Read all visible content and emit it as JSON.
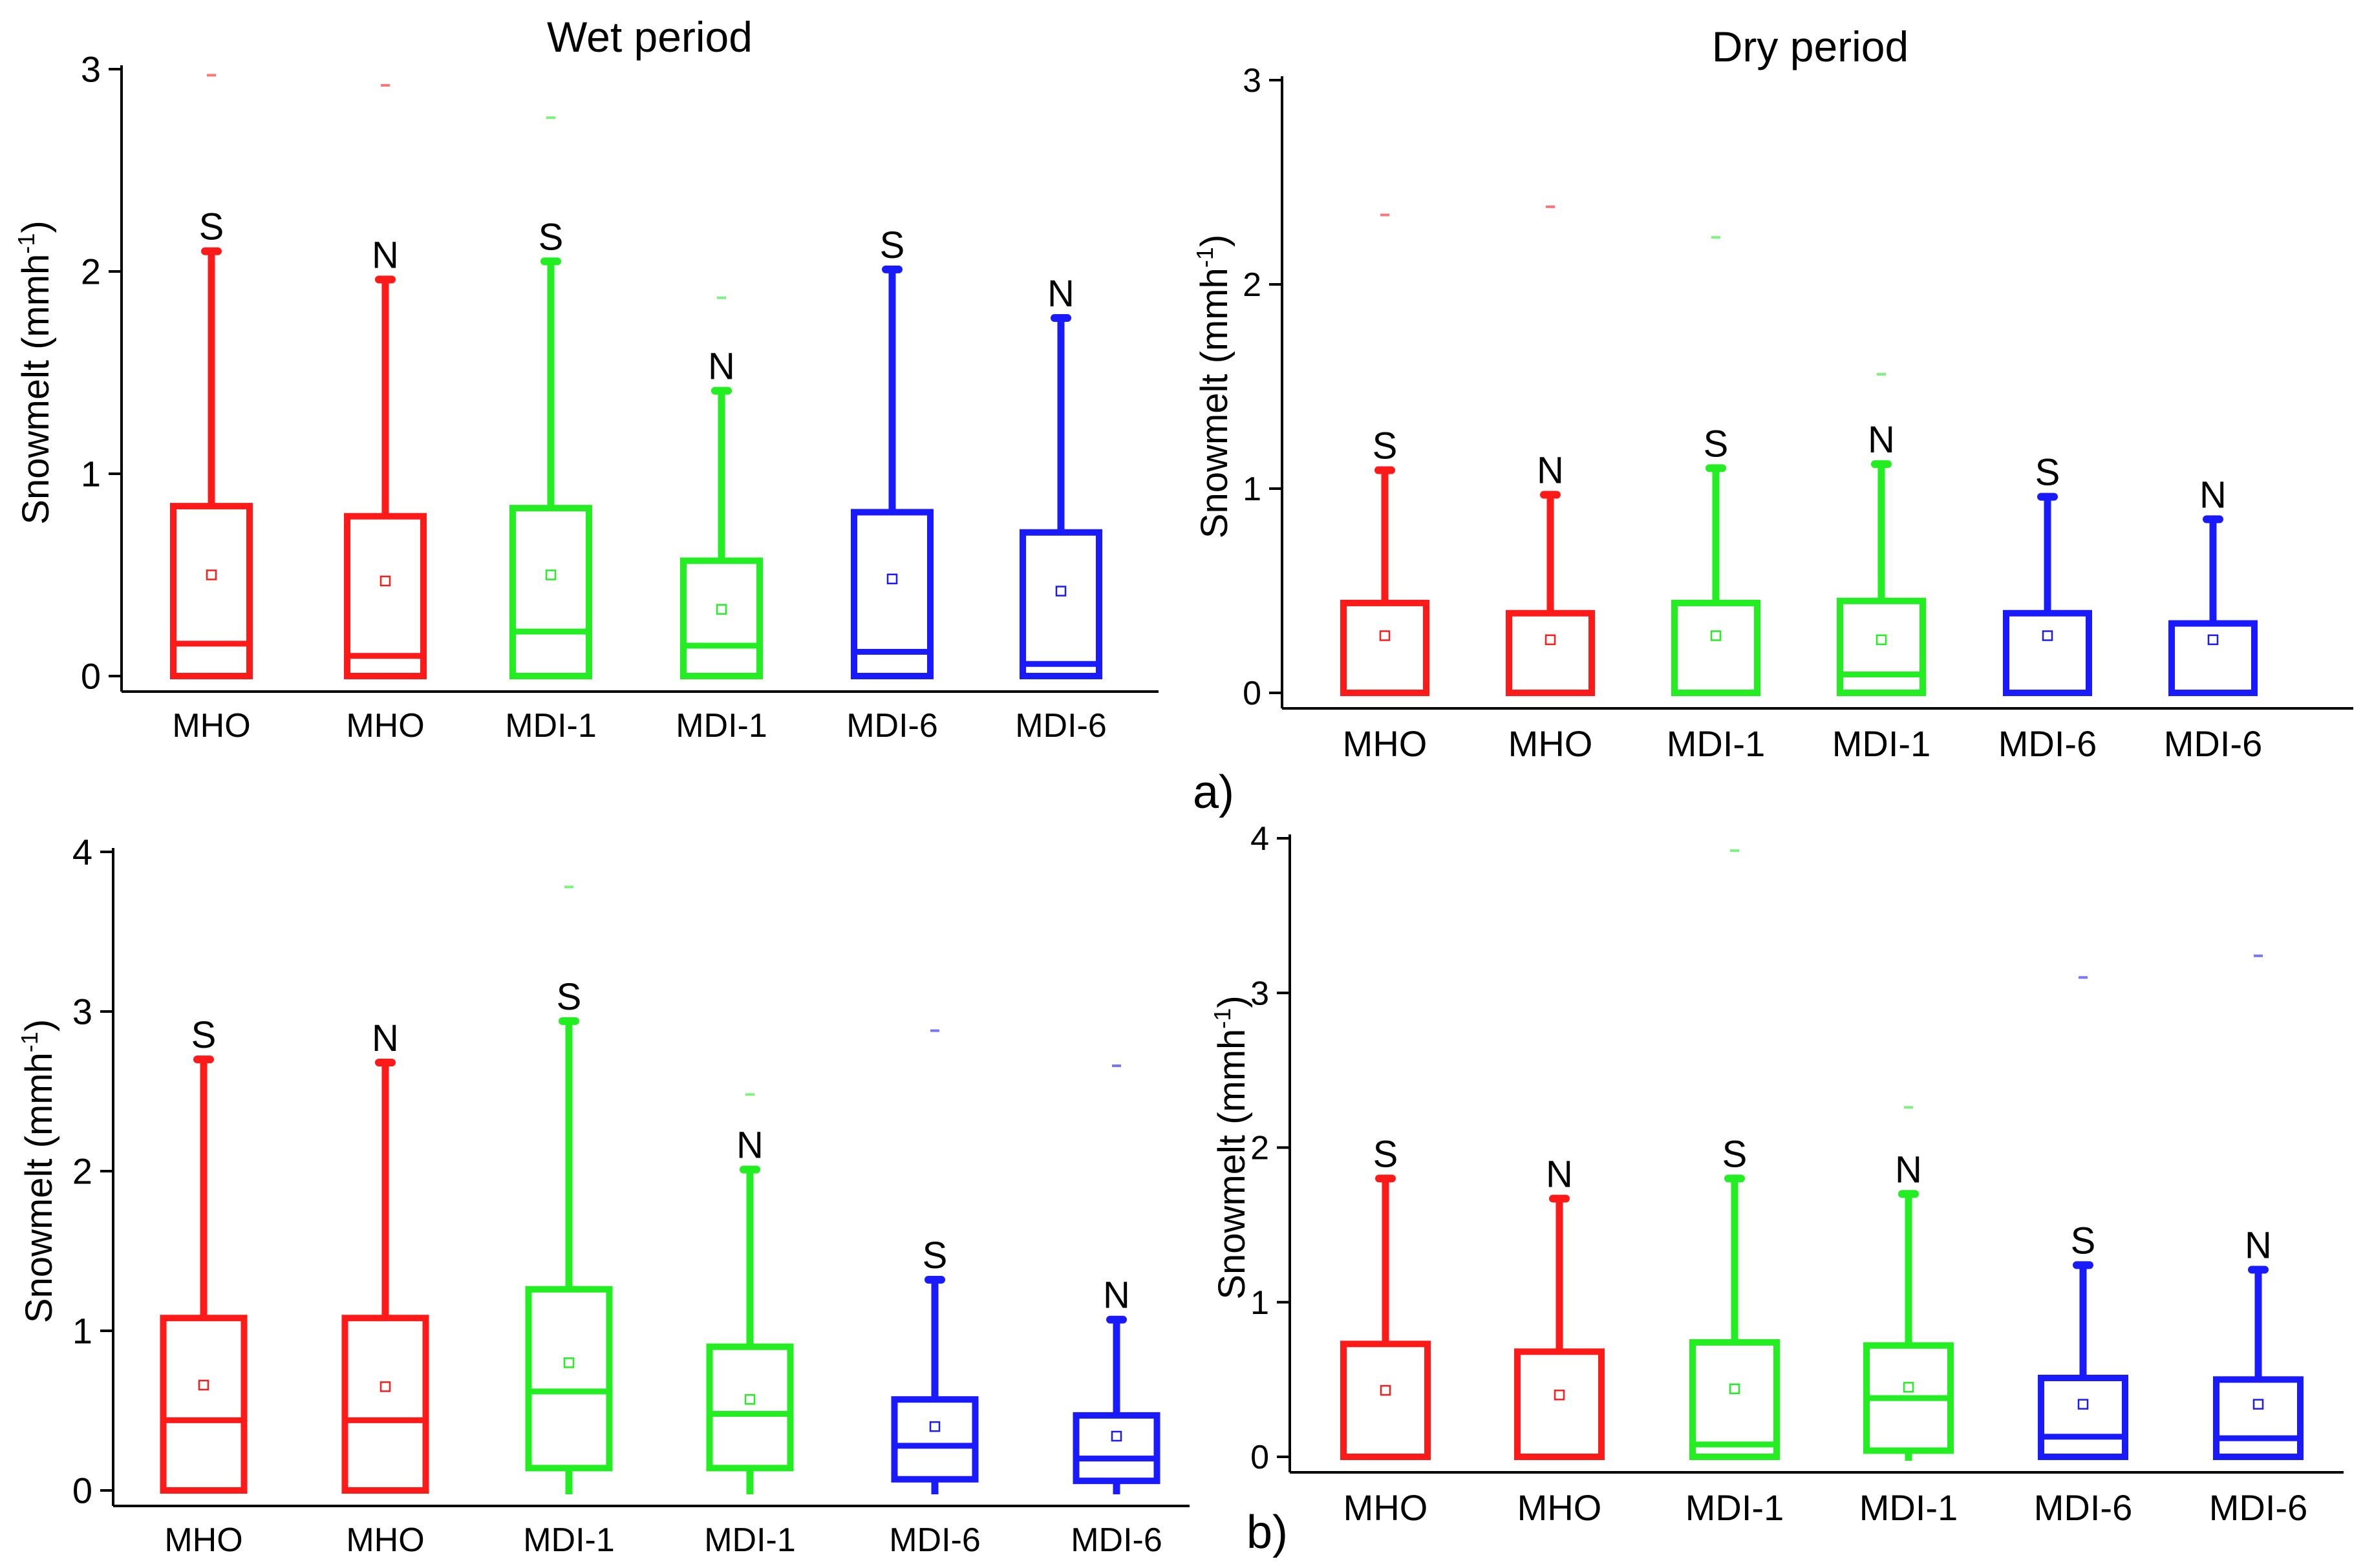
{
  "figure": {
    "panel_labels": [
      "a)",
      "b)"
    ],
    "colors": {
      "MHO": "#ff1a1a",
      "MDI-1": "#22ee22",
      "MDI-6": "#1a1aff",
      "axis": "#000000"
    }
  },
  "chart_data": [
    {
      "type": "box",
      "title": "Wet period",
      "ylabel": "Snowmelt (mmh",
      "ylabel_sup": "-1",
      "ylabel_close": ")",
      "ylim": [
        0,
        3
      ],
      "yticks": [
        0,
        1,
        2,
        3
      ],
      "categories": [
        "MHO",
        "MHO",
        "MDI-1",
        "MDI-1",
        "MDI-6",
        "MDI-6"
      ],
      "groups": [
        "MHO",
        "MHO",
        "MDI-1",
        "MDI-1",
        "MDI-6",
        "MDI-6"
      ],
      "sig_labels": [
        "S",
        "N",
        "S",
        "N",
        "S",
        "N"
      ],
      "boxes": [
        {
          "min": 0,
          "q1": 0,
          "median": 0.16,
          "q3": 0.84,
          "max": 2.1,
          "mean": 0.5,
          "outlier": 2.97
        },
        {
          "min": 0,
          "q1": 0,
          "median": 0.1,
          "q3": 0.79,
          "max": 1.96,
          "mean": 0.47,
          "outlier": 2.92
        },
        {
          "min": 0,
          "q1": 0,
          "median": 0.22,
          "q3": 0.83,
          "max": 2.05,
          "mean": 0.5,
          "outlier": 2.76
        },
        {
          "min": 0,
          "q1": 0,
          "median": 0.15,
          "q3": 0.57,
          "max": 1.41,
          "mean": 0.33,
          "outlier": 1.87
        },
        {
          "min": 0,
          "q1": 0,
          "median": 0.12,
          "q3": 0.81,
          "max": 2.01,
          "mean": 0.48,
          "outlier": null
        },
        {
          "min": 0,
          "q1": 0,
          "median": 0.06,
          "q3": 0.71,
          "max": 1.77,
          "mean": 0.42,
          "outlier": null
        }
      ]
    },
    {
      "type": "box",
      "title": "Dry period",
      "ylabel": "Snowmelt (mmh",
      "ylabel_sup": "-1",
      "ylabel_close": ")",
      "ylim": [
        0,
        3
      ],
      "yticks": [
        0,
        1,
        2,
        3
      ],
      "categories": [
        "MHO",
        "MHO",
        "MDI-1",
        "MDI-1",
        "MDI-6",
        "MDI-6"
      ],
      "groups": [
        "MHO",
        "MHO",
        "MDI-1",
        "MDI-1",
        "MDI-6",
        "MDI-6"
      ],
      "sig_labels": [
        "S",
        "N",
        "S",
        "N",
        "S",
        "N"
      ],
      "boxes": [
        {
          "min": 0,
          "q1": 0,
          "median": 0,
          "q3": 0.44,
          "max": 1.09,
          "mean": 0.28,
          "outlier": 2.34
        },
        {
          "min": 0,
          "q1": 0,
          "median": 0,
          "q3": 0.39,
          "max": 0.97,
          "mean": 0.26,
          "outlier": 2.38
        },
        {
          "min": 0,
          "q1": 0,
          "median": 0,
          "q3": 0.44,
          "max": 1.1,
          "mean": 0.28,
          "outlier": 2.23
        },
        {
          "min": 0,
          "q1": 0,
          "median": 0.09,
          "q3": 0.45,
          "max": 1.12,
          "mean": 0.26,
          "outlier": 1.56
        },
        {
          "min": 0,
          "q1": 0,
          "median": 0,
          "q3": 0.39,
          "max": 0.96,
          "mean": 0.28,
          "outlier": null
        },
        {
          "min": 0,
          "q1": 0,
          "median": 0,
          "q3": 0.34,
          "max": 0.85,
          "mean": 0.26,
          "outlier": null
        }
      ]
    },
    {
      "type": "box",
      "title": "",
      "ylabel": "Snowmelt (mmh",
      "ylabel_sup": "-1",
      "ylabel_close": ")",
      "ylim": [
        0,
        4
      ],
      "yticks": [
        0,
        1,
        2,
        3,
        4
      ],
      "categories": [
        "MHO",
        "MHO",
        "MDI-1",
        "MDI-1",
        "MDI-6",
        "MDI-6"
      ],
      "groups": [
        "MHO",
        "MHO",
        "MDI-1",
        "MDI-1",
        "MDI-6",
        "MDI-6"
      ],
      "sig_labels": [
        "S",
        "N",
        "S",
        "N",
        "S",
        "N"
      ],
      "boxes": [
        {
          "min": 0,
          "q1": 0,
          "median": 0.44,
          "q3": 1.08,
          "max": 2.7,
          "mean": 0.66,
          "outlier": null
        },
        {
          "min": 0,
          "q1": 0,
          "median": 0.44,
          "q3": 1.08,
          "max": 2.68,
          "mean": 0.65,
          "outlier": null
        },
        {
          "min": 0,
          "q1": 0.14,
          "median": 0.62,
          "q3": 1.26,
          "max": 2.94,
          "mean": 0.8,
          "outlier": 3.78
        },
        {
          "min": 0,
          "q1": 0.14,
          "median": 0.48,
          "q3": 0.9,
          "max": 2.01,
          "mean": 0.57,
          "outlier": 2.48
        },
        {
          "min": 0,
          "q1": 0.07,
          "median": 0.28,
          "q3": 0.57,
          "max": 1.32,
          "mean": 0.4,
          "outlier": 2.88
        },
        {
          "min": 0,
          "q1": 0.06,
          "median": 0.2,
          "q3": 0.47,
          "max": 1.07,
          "mean": 0.34,
          "outlier": 2.66
        }
      ]
    },
    {
      "type": "box",
      "title": "",
      "ylabel": "Snowmelt (mmh",
      "ylabel_sup": "-1",
      "ylabel_close": ")",
      "ylim": [
        0,
        4
      ],
      "yticks": [
        0,
        1,
        2,
        3,
        4
      ],
      "categories": [
        "MHO",
        "MHO",
        "MDI-1",
        "MDI-1",
        "MDI-6",
        "MDI-6"
      ],
      "groups": [
        "MHO",
        "MHO",
        "MDI-1",
        "MDI-1",
        "MDI-6",
        "MDI-6"
      ],
      "sig_labels": [
        "S",
        "N",
        "S",
        "N",
        "S",
        "N"
      ],
      "boxes": [
        {
          "min": 0,
          "q1": 0,
          "median": 0,
          "q3": 0.73,
          "max": 1.8,
          "mean": 0.43,
          "outlier": null
        },
        {
          "min": 0,
          "q1": 0,
          "median": 0,
          "q3": 0.68,
          "max": 1.67,
          "mean": 0.4,
          "outlier": null
        },
        {
          "min": 0,
          "q1": 0,
          "median": 0.08,
          "q3": 0.74,
          "max": 1.8,
          "mean": 0.44,
          "outlier": 3.92
        },
        {
          "min": 0,
          "q1": 0.04,
          "median": 0.38,
          "q3": 0.72,
          "max": 1.7,
          "mean": 0.45,
          "outlier": 2.26
        },
        {
          "min": 0,
          "q1": 0,
          "median": 0.13,
          "q3": 0.51,
          "max": 1.24,
          "mean": 0.34,
          "outlier": 3.1
        },
        {
          "min": 0,
          "q1": 0,
          "median": 0.12,
          "q3": 0.5,
          "max": 1.21,
          "mean": 0.34,
          "outlier": 3.24
        }
      ]
    }
  ]
}
